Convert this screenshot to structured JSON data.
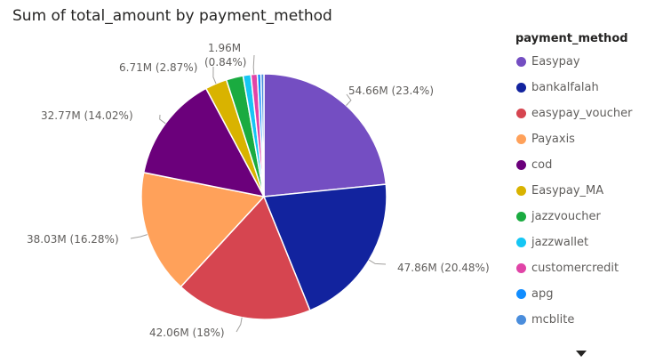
{
  "chart_data": {
    "type": "pie",
    "title": "Sum of total_amount by payment_method",
    "legend_title": "payment_method",
    "legend_position": "right",
    "series": [
      {
        "name": "Easypay",
        "value": 54.66,
        "percent": 23.4,
        "color": "#744EC2",
        "label": "54.66M (23.4%)"
      },
      {
        "name": "bankalfalah",
        "value": 47.86,
        "percent": 20.48,
        "color": "#12239E",
        "label": "47.86M (20.48%)"
      },
      {
        "name": "easypay_voucher",
        "value": 42.06,
        "percent": 18.0,
        "color": "#D64550",
        "label": "42.06M (18%)"
      },
      {
        "name": "Payaxis",
        "value": 38.03,
        "percent": 16.28,
        "color": "#FFA15A",
        "label": "38.03M (16.28%)"
      },
      {
        "name": "cod",
        "value": 32.77,
        "percent": 14.02,
        "color": "#6B007B",
        "label": "32.77M (14.02%)"
      },
      {
        "name": "Easypay_MA",
        "value": 6.71,
        "percent": 2.87,
        "color": "#D9B300",
        "label": "6.71M (2.87%)"
      },
      {
        "name": "jazzvoucher",
        "value": 5.2,
        "percent": 2.23,
        "color": "#1AAB40",
        "label": ""
      },
      {
        "name": "jazzwallet",
        "value": 2.4,
        "percent": 1.03,
        "color": "#15C6F4",
        "label": ""
      },
      {
        "name": "customercredit",
        "value": 1.96,
        "percent": 0.84,
        "color": "#E044A7",
        "label": "1.96M\n(0.84%)"
      },
      {
        "name": "apg",
        "value": 1.1,
        "percent": 0.47,
        "color": "#118DFF",
        "label": ""
      },
      {
        "name": "mcblite",
        "value": 0.93,
        "percent": 0.4,
        "color": "#4A8DDC",
        "label": ""
      }
    ]
  }
}
